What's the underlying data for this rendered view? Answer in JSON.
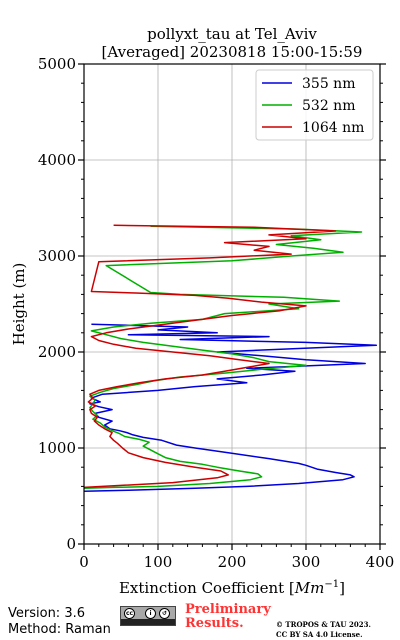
{
  "chart_data": {
    "type": "line",
    "title": "pollyxt_tau at Tel_Aviv",
    "subtitle": "[Averaged] 20230818 15:00-15:59",
    "xlabel_text": "Extinction Coefficient [",
    "xlabel_unit_base": "Mm",
    "xlabel_unit_exp": "−1",
    "xlabel_close": "]",
    "ylabel": "Height (m)",
    "xlim": [
      0,
      400
    ],
    "ylim": [
      0,
      5000
    ],
    "xticks": [
      "0",
      "100",
      "200",
      "300",
      "400"
    ],
    "yticks": [
      "0",
      "1000",
      "2000",
      "3000",
      "4000",
      "5000"
    ],
    "grid": true,
    "legend_placement": "top-right",
    "series": [
      {
        "name": "355 nm",
        "color": "#0000dd",
        "points": [
          [
            0,
            550
          ],
          [
            60,
            560
          ],
          [
            150,
            580
          ],
          [
            220,
            600
          ],
          [
            290,
            630
          ],
          [
            350,
            670
          ],
          [
            365,
            700
          ],
          [
            360,
            720
          ],
          [
            340,
            745
          ],
          [
            315,
            780
          ],
          [
            300,
            820
          ],
          [
            290,
            840
          ],
          [
            250,
            890
          ],
          [
            195,
            950
          ],
          [
            150,
            1000
          ],
          [
            125,
            1030
          ],
          [
            105,
            1080
          ],
          [
            80,
            1110
          ],
          [
            65,
            1140
          ],
          [
            58,
            1160
          ],
          [
            48,
            1180
          ],
          [
            35,
            1200
          ],
          [
            28,
            1240
          ],
          [
            38,
            1280
          ],
          [
            20,
            1320
          ],
          [
            15,
            1360
          ],
          [
            38,
            1400
          ],
          [
            20,
            1430
          ],
          [
            8,
            1460
          ],
          [
            22,
            1480
          ],
          [
            10,
            1520
          ],
          [
            25,
            1560
          ],
          [
            100,
            1600
          ],
          [
            150,
            1640
          ],
          [
            220,
            1680
          ],
          [
            180,
            1720
          ],
          [
            240,
            1760
          ],
          [
            285,
            1800
          ],
          [
            220,
            1830
          ],
          [
            380,
            1880
          ],
          [
            300,
            1920
          ],
          [
            240,
            1960
          ],
          [
            180,
            2000
          ],
          [
            270,
            2030
          ],
          [
            395,
            2070
          ],
          [
            300,
            2100
          ],
          [
            130,
            2130
          ],
          [
            250,
            2160
          ],
          [
            60,
            2180
          ],
          [
            180,
            2200
          ],
          [
            100,
            2230
          ],
          [
            140,
            2260
          ],
          [
            10,
            2290
          ]
        ]
      },
      {
        "name": "532 nm",
        "color": "#00b000",
        "points": [
          [
            0,
            580
          ],
          [
            40,
            590
          ],
          [
            100,
            600
          ],
          [
            170,
            630
          ],
          [
            225,
            670
          ],
          [
            240,
            700
          ],
          [
            235,
            730
          ],
          [
            210,
            760
          ],
          [
            180,
            800
          ],
          [
            160,
            830
          ],
          [
            130,
            860
          ],
          [
            110,
            900
          ],
          [
            100,
            940
          ],
          [
            90,
            980
          ],
          [
            80,
            1020
          ],
          [
            88,
            1060
          ],
          [
            75,
            1090
          ],
          [
            55,
            1120
          ],
          [
            48,
            1150
          ],
          [
            38,
            1180
          ],
          [
            28,
            1220
          ],
          [
            22,
            1260
          ],
          [
            12,
            1300
          ],
          [
            18,
            1340
          ],
          [
            12,
            1380
          ],
          [
            8,
            1420
          ],
          [
            12,
            1460
          ],
          [
            15,
            1500
          ],
          [
            8,
            1540
          ],
          [
            22,
            1580
          ],
          [
            40,
            1620
          ],
          [
            70,
            1660
          ],
          [
            95,
            1700
          ],
          [
            130,
            1740
          ],
          [
            190,
            1780
          ],
          [
            240,
            1820
          ],
          [
            300,
            1860
          ],
          [
            250,
            1900
          ],
          [
            230,
            1940
          ],
          [
            200,
            1980
          ],
          [
            160,
            2020
          ],
          [
            120,
            2060
          ],
          [
            80,
            2100
          ],
          [
            50,
            2140
          ],
          [
            30,
            2180
          ],
          [
            10,
            2220
          ],
          [
            40,
            2260
          ],
          [
            90,
            2300
          ],
          [
            160,
            2340
          ],
          [
            190,
            2400
          ],
          [
            290,
            2450
          ],
          [
            250,
            2500
          ],
          [
            345,
            2530
          ],
          [
            270,
            2570
          ],
          [
            130,
            2600
          ],
          [
            90,
            2620
          ],
          [
            30,
            2900
          ],
          [
            200,
            2950
          ],
          [
            280,
            3000
          ],
          [
            350,
            3040
          ],
          [
            310,
            3080
          ],
          [
            260,
            3120
          ],
          [
            320,
            3170
          ],
          [
            280,
            3210
          ],
          [
            375,
            3250
          ],
          [
            290,
            3280
          ],
          [
            90,
            3310
          ]
        ]
      },
      {
        "name": "1064 nm",
        "color": "#cc0000",
        "points": [
          [
            0,
            590
          ],
          [
            50,
            610
          ],
          [
            120,
            640
          ],
          [
            180,
            690
          ],
          [
            195,
            720
          ],
          [
            185,
            760
          ],
          [
            150,
            800
          ],
          [
            110,
            850
          ],
          [
            80,
            900
          ],
          [
            60,
            950
          ],
          [
            52,
            1000
          ],
          [
            45,
            1050
          ],
          [
            40,
            1080
          ],
          [
            35,
            1120
          ],
          [
            38,
            1160
          ],
          [
            28,
            1200
          ],
          [
            20,
            1240
          ],
          [
            14,
            1280
          ],
          [
            18,
            1320
          ],
          [
            10,
            1360
          ],
          [
            8,
            1400
          ],
          [
            16,
            1440
          ],
          [
            6,
            1480
          ],
          [
            12,
            1520
          ],
          [
            8,
            1560
          ],
          [
            20,
            1600
          ],
          [
            45,
            1640
          ],
          [
            75,
            1680
          ],
          [
            110,
            1720
          ],
          [
            160,
            1760
          ],
          [
            190,
            1800
          ],
          [
            220,
            1840
          ],
          [
            250,
            1880
          ],
          [
            210,
            1920
          ],
          [
            170,
            1960
          ],
          [
            120,
            2000
          ],
          [
            70,
            2040
          ],
          [
            40,
            2080
          ],
          [
            20,
            2120
          ],
          [
            10,
            2160
          ],
          [
            30,
            2200
          ],
          [
            60,
            2240
          ],
          [
            100,
            2280
          ],
          [
            140,
            2320
          ],
          [
            200,
            2380
          ],
          [
            265,
            2430
          ],
          [
            300,
            2480
          ],
          [
            240,
            2520
          ],
          [
            195,
            2560
          ],
          [
            150,
            2590
          ],
          [
            70,
            2615
          ],
          [
            10,
            2630
          ],
          [
            20,
            2940
          ],
          [
            170,
            2980
          ],
          [
            280,
            3020
          ],
          [
            230,
            3060
          ],
          [
            250,
            3100
          ],
          [
            190,
            3140
          ],
          [
            300,
            3180
          ],
          [
            250,
            3220
          ],
          [
            340,
            3260
          ],
          [
            230,
            3300
          ],
          [
            40,
            3320
          ]
        ]
      }
    ]
  },
  "footer": {
    "version": "Version: 3.6",
    "method": "Method: Raman",
    "preliminary_line1": "Preliminary",
    "preliminary_line2": "Results.",
    "copyright_line1": "© TROPOS & TAU 2023.",
    "copyright_line2": "CC BY SA 4.0 License."
  }
}
